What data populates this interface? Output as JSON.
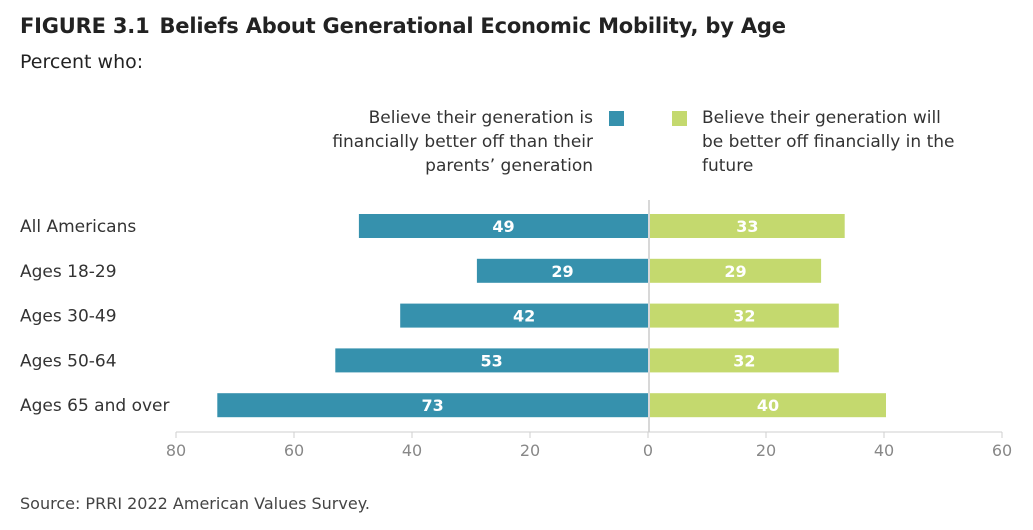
{
  "header": {
    "figure_label": "FIGURE 3.1",
    "title": "Beliefs About Generational Economic Mobility, by Age",
    "subtitle": "Percent who:"
  },
  "legend": {
    "left": "Believe their generation is financially better off than their parents’ generation",
    "right": "Believe their generation will be better off financially in the future"
  },
  "source": "Source: PRRI 2022 American Values Survey.",
  "colors": {
    "left_series": "#3691ad",
    "right_series": "#c4d96e"
  },
  "chart_data": {
    "type": "bar",
    "orientation": "horizontal-diverging",
    "categories": [
      "All Americans",
      "Ages 18-29",
      "Ages 30-49",
      "Ages 50-64",
      "Ages 65 and over"
    ],
    "series": [
      {
        "name": "Believe their generation is financially better off than their parents’ generation",
        "values": [
          49,
          29,
          42,
          53,
          73
        ]
      },
      {
        "name": "Believe their generation will be better off financially in the future",
        "values": [
          33,
          29,
          32,
          32,
          40
        ]
      }
    ],
    "x_ticks_left": [
      "80",
      "60",
      "40",
      "20",
      "0"
    ],
    "x_ticks_right": [
      "20",
      "40",
      "60"
    ],
    "xlim_left": [
      80,
      0
    ],
    "xlim_right": [
      0,
      60
    ],
    "grid": false,
    "legend_position": "top"
  }
}
